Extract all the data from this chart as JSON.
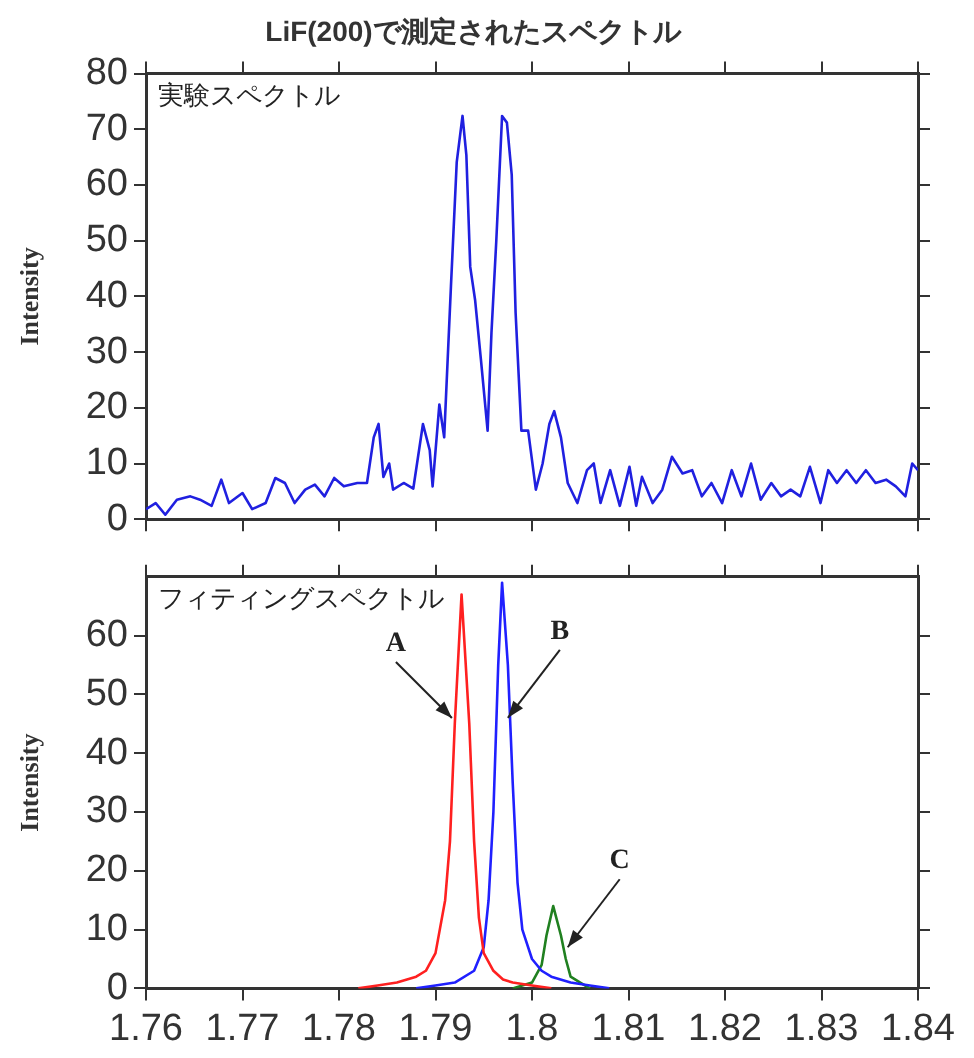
{
  "chart_data": [
    {
      "type": "line",
      "title": "LiF(200)で測定されたスペクトル",
      "ylabel": "Intensity",
      "annotations": [
        "実験スペクトル"
      ],
      "xlim": [
        1.76,
        1.84
      ],
      "xticks": [
        1.76,
        1.77,
        1.78,
        1.79,
        1.8,
        1.81,
        1.82,
        1.83,
        1.84
      ],
      "ylim": [
        0,
        80
      ],
      "yticks": [
        0,
        10,
        20,
        30,
        40,
        50,
        60,
        70,
        80
      ],
      "tick_labels": "y",
      "grid": false,
      "legend": false,
      "marker": "none",
      "series": [
        {
          "color": "#2020e0",
          "x": [
            1.76,
            1.761,
            1.762,
            1.7632,
            1.7646,
            1.7656,
            1.7668,
            1.7678,
            1.7686,
            1.77,
            1.771,
            1.7724,
            1.7734,
            1.7744,
            1.7754,
            1.7765,
            1.7775,
            1.7785,
            1.7795,
            1.7805,
            1.7819,
            1.7829,
            1.7836,
            1.7841,
            1.7846,
            1.7852,
            1.7856,
            1.7867,
            1.7877,
            1.7887,
            1.7894,
            1.7897,
            1.7904,
            1.7909,
            1.7916,
            1.7922,
            1.7928,
            1.7932,
            1.7936,
            1.7941,
            1.7947,
            1.7954,
            1.7958,
            1.7963,
            1.7969,
            1.7974,
            1.7979,
            1.7983,
            1.7989,
            1.7996,
            1.8004,
            1.8011,
            1.8018,
            1.8023,
            1.803,
            1.8037,
            1.8047,
            1.8057,
            1.8064,
            1.8071,
            1.8081,
            1.8091,
            1.8101,
            1.8108,
            1.8114,
            1.8125,
            1.8135,
            1.8145,
            1.8156,
            1.8166,
            1.8176,
            1.8186,
            1.8197,
            1.8207,
            1.8217,
            1.8227,
            1.8237,
            1.8248,
            1.8258,
            1.8268,
            1.8278,
            1.8288,
            1.8299,
            1.8307,
            1.8316,
            1.8326,
            1.8336,
            1.8346,
            1.8356,
            1.8367,
            1.8377,
            1.8387,
            1.8394,
            1.84
          ],
          "values": [
            1.8,
            2.9,
            0.8,
            3.5,
            4.1,
            3.5,
            2.4,
            7.1,
            2.9,
            4.7,
            1.8,
            2.9,
            7.4,
            6.5,
            2.9,
            5.3,
            6.2,
            4.1,
            7.4,
            5.9,
            6.5,
            6.5,
            14.7,
            17.1,
            7.6,
            10,
            5.3,
            6.5,
            5.5,
            17.1,
            12.4,
            5.9,
            20.6,
            14.7,
            41.8,
            64.1,
            72.4,
            65.3,
            45.3,
            39.4,
            28.8,
            15.9,
            33.5,
            50,
            72.4,
            71.2,
            61.8,
            37.1,
            15.9,
            15.9,
            5.3,
            10,
            17.1,
            19.4,
            14.7,
            6.5,
            2.9,
            8.8,
            10,
            2.9,
            8.8,
            2.4,
            9.4,
            2.4,
            7.6,
            2.9,
            5.3,
            11.2,
            8.2,
            8.8,
            4.1,
            6.5,
            2.9,
            8.8,
            4.1,
            10,
            3.5,
            6.5,
            4.1,
            5.3,
            4.1,
            9.4,
            2.9,
            8.8,
            6.5,
            8.8,
            6.5,
            8.8,
            6.5,
            7.1,
            5.9,
            4.1,
            10,
            8.8
          ]
        }
      ]
    },
    {
      "type": "line",
      "xlabel": null,
      "ylabel": "Intensity",
      "annotations": [
        "フィティングスペクトル",
        {
          "text": "A",
          "x": 1.7917,
          "y": 46
        },
        {
          "text": "B",
          "x": 1.7975,
          "y": 46
        },
        {
          "text": "C",
          "x": 1.8037,
          "y": 7
        }
      ],
      "xlim": [
        1.76,
        1.84
      ],
      "xticks": [
        1.76,
        1.77,
        1.78,
        1.79,
        1.8,
        1.81,
        1.82,
        1.83,
        1.84
      ],
      "ylim": [
        0,
        70
      ],
      "yticks": [
        0,
        10,
        20,
        30,
        40,
        50,
        60
      ],
      "grid": false,
      "legend": false,
      "marker": "none",
      "series": [
        {
          "color": "#ff2020",
          "x": [
            1.782,
            1.784,
            1.786,
            1.788,
            1.789,
            1.79,
            1.791,
            1.7915,
            1.792,
            1.7927,
            1.7935,
            1.794,
            1.7945,
            1.795,
            1.796,
            1.797,
            1.798,
            1.8,
            1.802
          ],
          "values": [
            0,
            0.5,
            1,
            2,
            3,
            6,
            15,
            25,
            45,
            67,
            45,
            25,
            12,
            6,
            3,
            1.5,
            1,
            0.5,
            0
          ]
        },
        {
          "color": "#2020ff",
          "x": [
            1.788,
            1.79,
            1.792,
            1.794,
            1.795,
            1.7955,
            1.796,
            1.7965,
            1.7969,
            1.7975,
            1.798,
            1.7985,
            1.799,
            1.8,
            1.801,
            1.802,
            1.804,
            1.806,
            1.808
          ],
          "values": [
            0,
            0.5,
            1,
            3,
            7,
            15,
            30,
            55,
            69,
            55,
            35,
            18,
            10,
            5,
            3,
            2,
            1,
            0.5,
            0
          ]
        },
        {
          "color": "#208020",
          "x": [
            1.798,
            1.8,
            1.801,
            1.8015,
            1.8022,
            1.803,
            1.8035,
            1.804,
            1.805,
            1.806
          ],
          "values": [
            0,
            1,
            4,
            9,
            14,
            9,
            5,
            2,
            1,
            0
          ]
        }
      ]
    }
  ]
}
